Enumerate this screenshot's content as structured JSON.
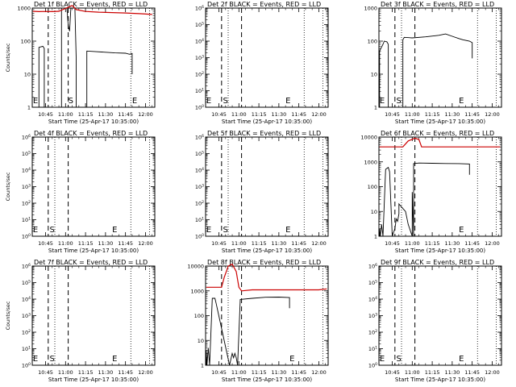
{
  "chart_data": [
    {
      "type": "line",
      "title": "Det 1f BLACK = Events, RED = LLD",
      "xlabel": "Start Time (25-Apr-17 10:35:00)",
      "ylabel": "Counts/sec",
      "log": true,
      "ylim": [
        1,
        1000
      ],
      "yticks": [
        "1",
        "10",
        "100",
        "1000"
      ],
      "xticks": [
        "10:45",
        "11:00",
        "11:15",
        "11:30",
        "11:45",
        "12:00"
      ],
      "markers": [
        {
          "t": "E",
          "x": 0.5
        },
        {
          "t": "S",
          "x": 27
        },
        {
          "t": "E",
          "x": 75
        }
      ],
      "series": [
        {
          "color": "#000000",
          "values": [
            [
              5,
              1
            ],
            [
              5,
              65
            ],
            [
              8,
              70
            ],
            [
              9,
              60
            ],
            [
              9,
              1
            ],
            [
              22,
              1
            ],
            [
              22,
              1000
            ],
            [
              26,
              1000
            ],
            [
              27,
              300
            ],
            [
              28,
              200
            ],
            [
              29,
              1000
            ],
            [
              32,
              1000
            ],
            [
              33,
              30
            ],
            [
              33,
              1
            ],
            [
              41,
              1
            ],
            [
              41,
              50
            ],
            [
              48,
              48
            ],
            [
              55,
              46
            ],
            [
              62,
              44
            ],
            [
              70,
              43
            ],
            [
              73,
              40
            ],
            [
              75,
              42
            ],
            [
              75,
              10
            ]
          ]
        },
        {
          "color": "#cc0000",
          "values": [
            [
              0.5,
              800
            ],
            [
              5,
              780
            ],
            [
              10,
              790
            ],
            [
              15,
              780
            ],
            [
              20,
              800
            ],
            [
              30,
              1200
            ],
            [
              33,
              900
            ],
            [
              40,
              790
            ],
            [
              50,
              750
            ],
            [
              60,
              730
            ],
            [
              70,
              710
            ],
            [
              80,
              680
            ],
            [
              90,
              640
            ]
          ]
        }
      ]
    },
    {
      "type": "line",
      "title": "Det 2f BLACK = Events, RED = LLD",
      "xlabel": "Start Time (25-Apr-17 10:35:00)",
      "ylabel": "",
      "log": true,
      "ylim": [
        1,
        1000000
      ],
      "yticks": [
        "10^0",
        "10^1",
        "10^2",
        "10^3",
        "10^4",
        "10^5",
        "10^6"
      ],
      "xticks": [
        "10:45",
        "11:00",
        "11:15",
        "11:30",
        "11:45",
        "12:00"
      ],
      "markers": [
        {
          "t": "E",
          "x": 0.5
        },
        {
          "t": "S",
          "x": 13
        },
        {
          "t": "E",
          "x": 60
        }
      ],
      "series": []
    },
    {
      "type": "line",
      "title": "Det 3f BLACK = Events, RED = LLD",
      "xlabel": "Start Time (25-Apr-17 10:35:00)",
      "ylabel": "",
      "log": true,
      "ylim": [
        1,
        1000
      ],
      "yticks": [
        "1",
        "10",
        "100",
        "1000"
      ],
      "xticks": [
        "10:45",
        "11:00",
        "11:15",
        "11:30",
        "11:45",
        "12:00"
      ],
      "markers": [
        {
          "t": "E",
          "x": 0.5
        },
        {
          "t": "S",
          "x": 13
        },
        {
          "t": "E",
          "x": 60
        }
      ],
      "series": [
        {
          "color": "#000000",
          "values": [
            [
              0.5,
              1
            ],
            [
              0.5,
              50
            ],
            [
              3,
              80
            ],
            [
              4,
              100
            ],
            [
              6,
              95
            ],
            [
              7,
              80
            ],
            [
              7,
              1
            ],
            [
              18,
              1
            ],
            [
              18,
              110
            ],
            [
              19,
              130
            ],
            [
              25,
              125
            ],
            [
              35,
              135
            ],
            [
              45,
              150
            ],
            [
              50,
              165
            ],
            [
              55,
              140
            ],
            [
              60,
              120
            ],
            [
              63,
              110
            ],
            [
              68,
              100
            ],
            [
              70,
              90
            ],
            [
              70,
              30
            ]
          ]
        }
      ]
    },
    {
      "type": "line",
      "title": "Det 4f BLACK = Events, RED = LLD",
      "xlabel": "Start Time (25-Apr-17 10:35:00)",
      "ylabel": "Counts/sec",
      "log": true,
      "ylim": [
        1,
        1000000
      ],
      "yticks": [
        "10^0",
        "10^1",
        "10^2",
        "10^3",
        "10^4",
        "10^5",
        "10^6"
      ],
      "xticks": [
        "10:45",
        "11:00",
        "11:15",
        "11:30",
        "11:45",
        "12:00"
      ],
      "markers": [
        {
          "t": "E",
          "x": 0.5
        },
        {
          "t": "S",
          "x": 13
        },
        {
          "t": "E",
          "x": 60
        }
      ],
      "series": []
    },
    {
      "type": "line",
      "title": "Det 5f BLACK = Events, RED = LLD",
      "xlabel": "Start Time (25-Apr-17 10:35:00)",
      "ylabel": "",
      "log": true,
      "ylim": [
        1,
        1000000
      ],
      "yticks": [
        "10^0",
        "10^1",
        "10^2",
        "10^3",
        "10^4",
        "10^5",
        "10^6"
      ],
      "xticks": [
        "10:45",
        "11:00",
        "11:15",
        "11:30",
        "11:45",
        "12:00"
      ],
      "markers": [
        {
          "t": "E",
          "x": 0.5
        },
        {
          "t": "S",
          "x": 13
        },
        {
          "t": "E",
          "x": 60
        }
      ],
      "series": []
    },
    {
      "type": "line",
      "title": "Det 6f BLACK = Events, RED = LLD",
      "xlabel": "Start Time (25-Apr-17 10:35:00)",
      "ylabel": "",
      "log": true,
      "ylim": [
        1,
        10000
      ],
      "yticks": [
        "1",
        "10",
        "100",
        "1000",
        "10000"
      ],
      "xticks": [
        "10:45",
        "11:00",
        "11:15",
        "11:30",
        "11:45",
        "12:00"
      ],
      "markers": [
        {
          "t": "E",
          "x": 60
        }
      ],
      "series": [
        {
          "color": "#000000",
          "values": [
            [
              0.5,
              1
            ],
            [
              0.5,
              2
            ],
            [
              1,
              1
            ],
            [
              2,
              3
            ],
            [
              3,
              1
            ],
            [
              5,
              500
            ],
            [
              7,
              600
            ],
            [
              8,
              400
            ],
            [
              10,
              1
            ],
            [
              12,
              2
            ],
            [
              13,
              5
            ],
            [
              14,
              4
            ],
            [
              15,
              8
            ],
            [
              15,
              20
            ],
            [
              20,
              10
            ],
            [
              22,
              3
            ],
            [
              25,
              1
            ],
            [
              25,
              60
            ],
            [
              26,
              1
            ],
            [
              26,
              850
            ],
            [
              30,
              900
            ],
            [
              40,
              880
            ],
            [
              50,
              860
            ],
            [
              60,
              850
            ],
            [
              68,
              820
            ],
            [
              68,
              300
            ]
          ]
        },
        {
          "color": "#cc0000",
          "values": [
            [
              0.5,
              4000
            ],
            [
              10,
              4000
            ],
            [
              18,
              4000
            ],
            [
              22,
              7000
            ],
            [
              27,
              9000
            ],
            [
              30,
              8000
            ],
            [
              32,
              4000
            ],
            [
              40,
              4000
            ],
            [
              60,
              4000
            ],
            [
              80,
              4000
            ],
            [
              91,
              4000
            ]
          ]
        }
      ]
    },
    {
      "type": "line",
      "title": "Det 7f BLACK = Events, RED = LLD",
      "xlabel": "Start Time (25-Apr-17 10:35:00)",
      "ylabel": "Counts/sec",
      "log": true,
      "ylim": [
        1,
        1000000
      ],
      "yticks": [
        "10^0",
        "10^1",
        "10^2",
        "10^3",
        "10^4",
        "10^5",
        "10^6"
      ],
      "xticks": [
        "10:45",
        "11:00",
        "11:15",
        "11:30",
        "11:45",
        "12:00"
      ],
      "markers": [
        {
          "t": "E",
          "x": 0.5
        },
        {
          "t": "S",
          "x": 13
        },
        {
          "t": "E",
          "x": 60
        }
      ],
      "series": []
    },
    {
      "type": "line",
      "title": "Det 8f BLACK = Events, RED = LLD",
      "xlabel": "Start Time (25-Apr-17 10:35:00)",
      "ylabel": "",
      "log": true,
      "ylim": [
        1,
        10000
      ],
      "yticks": [
        "1",
        "10",
        "100",
        "1000",
        "10000"
      ],
      "xticks": [
        "10:45",
        "11:00",
        "11:15",
        "11:30",
        "11:45",
        "12:00"
      ],
      "markers": [
        {
          "t": "E",
          "x": 63
        }
      ],
      "series": [
        {
          "color": "#000000",
          "values": [
            [
              0.5,
              1
            ],
            [
              0.5,
              4
            ],
            [
              1,
              1
            ],
            [
              2,
              5
            ],
            [
              3,
              1
            ],
            [
              5,
              500
            ],
            [
              7,
              500
            ],
            [
              8,
              300
            ],
            [
              18,
              1
            ],
            [
              20,
              3
            ],
            [
              21,
              2
            ],
            [
              22,
              3
            ],
            [
              23,
              2
            ],
            [
              24,
              1
            ],
            [
              26,
              450
            ],
            [
              35,
              500
            ],
            [
              45,
              550
            ],
            [
              55,
              560
            ],
            [
              63,
              540
            ],
            [
              63,
              200
            ]
          ]
        },
        {
          "color": "#cc0000",
          "values": [
            [
              0.5,
              1400
            ],
            [
              12,
              1400
            ],
            [
              14,
              3500
            ],
            [
              17,
              10000
            ],
            [
              20,
              12000
            ],
            [
              23,
              6000
            ],
            [
              25,
              1400
            ],
            [
              27,
              1000
            ],
            [
              35,
              1100
            ],
            [
              50,
              1100
            ],
            [
              70,
              1100
            ],
            [
              85,
              1100
            ],
            [
              91,
              1200
            ]
          ]
        }
      ]
    },
    {
      "type": "line",
      "title": "Det 9f BLACK = Events, RED = LLD",
      "xlabel": "Start Time (25-Apr-17 10:35:00)",
      "ylabel": "",
      "log": true,
      "ylim": [
        1,
        1000000
      ],
      "yticks": [
        "10^0",
        "10^1",
        "10^2",
        "10^3",
        "10^4",
        "10^5",
        "10^6"
      ],
      "xticks": [
        "10:45",
        "11:00",
        "11:15",
        "11:30",
        "11:45",
        "12:00"
      ],
      "markers": [
        {
          "t": "E",
          "x": 0.5
        },
        {
          "t": "S",
          "x": 13
        },
        {
          "t": "E",
          "x": 60
        }
      ],
      "series": []
    }
  ]
}
